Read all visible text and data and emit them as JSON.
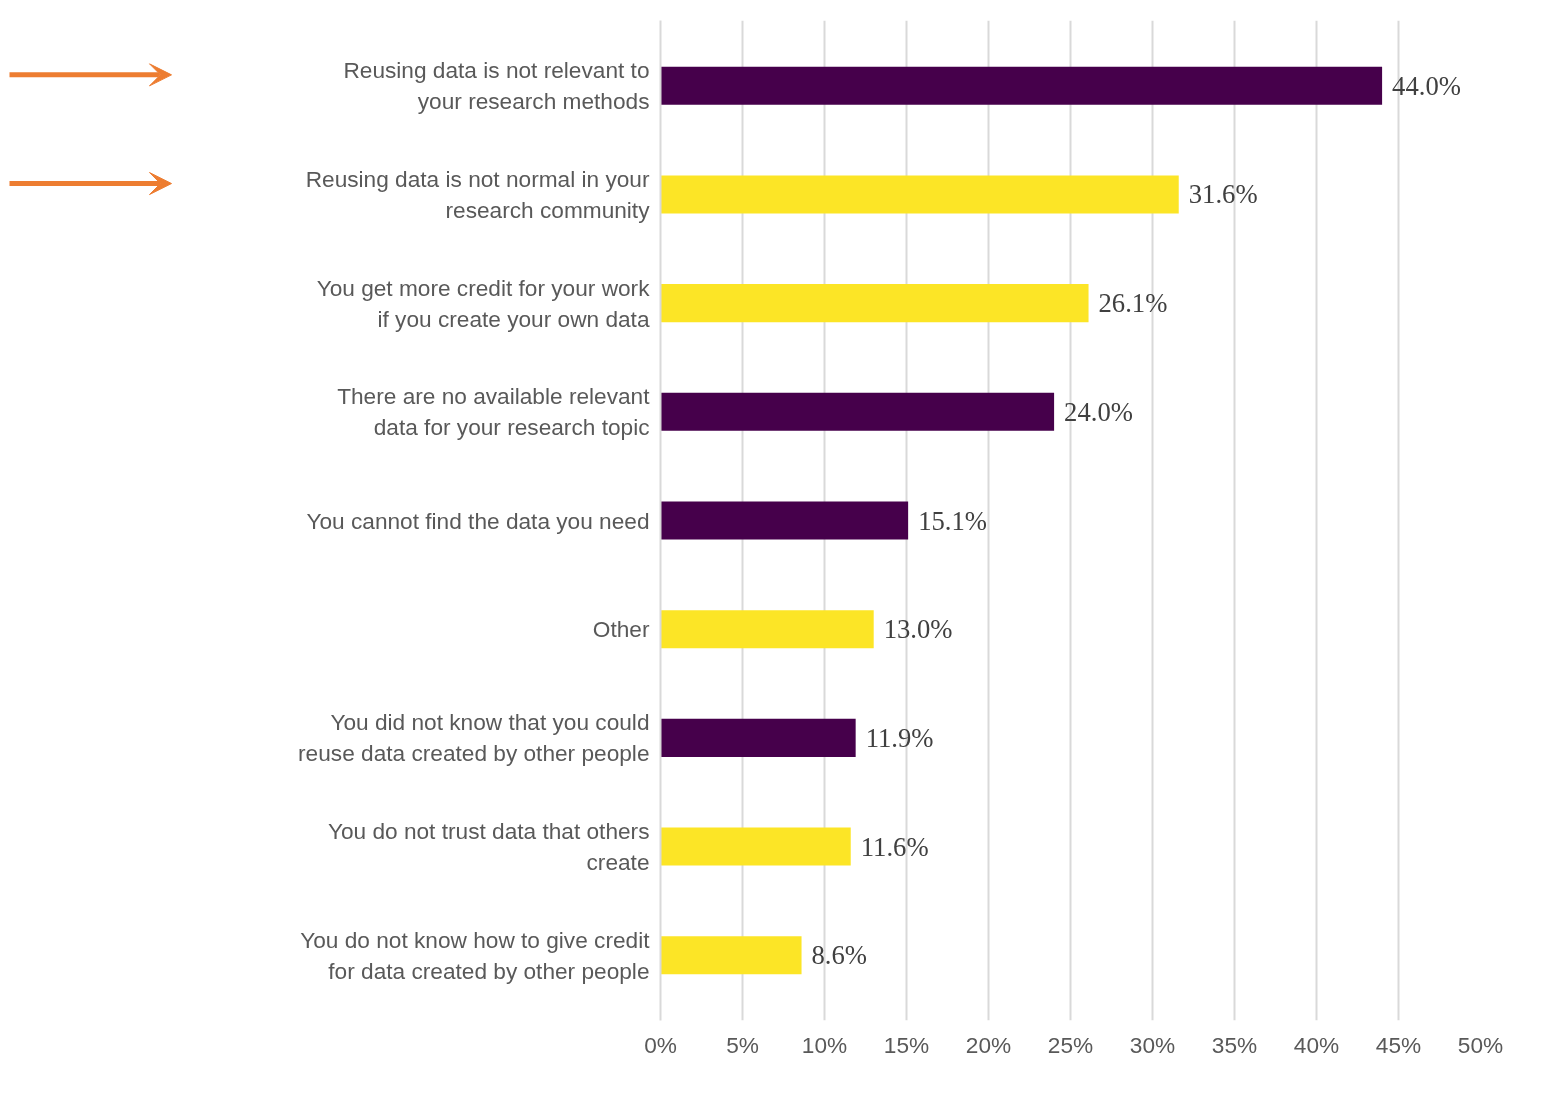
{
  "chart_data": {
    "type": "bar",
    "orientation": "horizontal",
    "categories": [
      "Reusing data is not relevant to your research methods",
      "Reusing data is not normal in your research community",
      "You get more credit for your work if you create your own data",
      "There are no available relevant data for your research topic",
      "You cannot find the data you need",
      "Other",
      "You did not know that you could reuse data created by other people",
      "You do not trust data that others create",
      "You do not know how to give credit for data created by other people"
    ],
    "values": [
      44.0,
      31.6,
      26.1,
      24.0,
      15.1,
      13.0,
      11.9,
      11.6,
      8.6
    ],
    "colors": [
      "#46004b",
      "#fce526",
      "#fce526",
      "#46004b",
      "#46004b",
      "#fce526",
      "#46004b",
      "#fce526",
      "#fce526"
    ],
    "value_labels": [
      "44.0%",
      "31.6%",
      "26.1%",
      "24.0%",
      "15.1%",
      "13.0%",
      "11.9%",
      "11.6%",
      "8.6%"
    ],
    "xlim": [
      0,
      50
    ],
    "xticks": [
      {
        "value": 0,
        "label": "0%"
      },
      {
        "value": 5,
        "label": "5%"
      },
      {
        "value": 10,
        "label": "10%"
      },
      {
        "value": 15,
        "label": "15%"
      },
      {
        "value": 20,
        "label": "20%"
      },
      {
        "value": 25,
        "label": "25%"
      },
      {
        "value": 30,
        "label": "30%"
      },
      {
        "value": 35,
        "label": "35%"
      },
      {
        "value": 40,
        "label": "40%"
      },
      {
        "value": 45,
        "label": "45%"
      },
      {
        "value": 50,
        "label": "50%"
      }
    ],
    "grid": "x"
  }
}
